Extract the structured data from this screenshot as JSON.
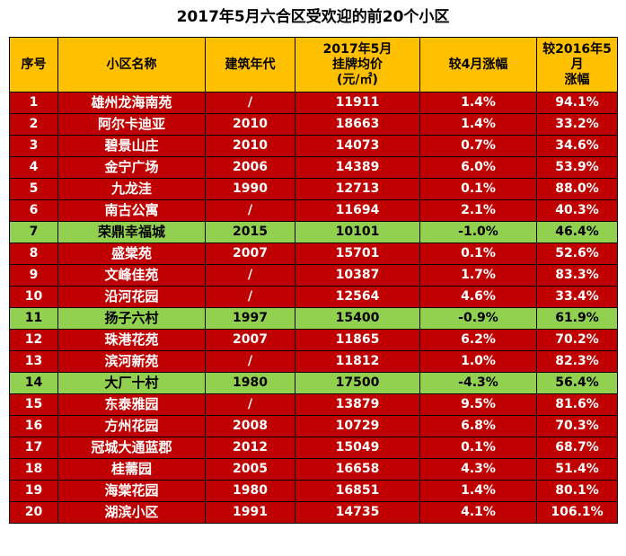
{
  "title": "2017年5月六合区受欢迎的前20个小区",
  "colors": {
    "header_bg": "#ffc000",
    "row_bg": "#c00000",
    "highlight_bg": "#92d050"
  },
  "chart_data": {
    "type": "table",
    "title": "2017年5月六合区受欢迎的前20个小区",
    "headers": [
      "序号",
      "小区名称",
      "建筑年代",
      "2017年5月挂牌均价(元/㎡)",
      "较4月涨幅",
      "较2016年5月涨幅"
    ],
    "rows": [
      {
        "no": "1",
        "name": "雄州龙海南苑",
        "year": "/",
        "price": "11911",
        "mom": "1.4%",
        "yoy": "94.1%",
        "highlight": false
      },
      {
        "no": "2",
        "name": "阿尔卡迪亚",
        "year": "2010",
        "price": "18663",
        "mom": "1.4%",
        "yoy": "33.2%",
        "highlight": false
      },
      {
        "no": "3",
        "name": "碧景山庄",
        "year": "2010",
        "price": "14073",
        "mom": "0.7%",
        "yoy": "34.6%",
        "highlight": false
      },
      {
        "no": "4",
        "name": "金宁广场",
        "year": "2006",
        "price": "14389",
        "mom": "6.0%",
        "yoy": "53.9%",
        "highlight": false
      },
      {
        "no": "5",
        "name": "九龙洼",
        "year": "1990",
        "price": "12713",
        "mom": "0.1%",
        "yoy": "88.0%",
        "highlight": false
      },
      {
        "no": "6",
        "name": "南古公寓",
        "year": "/",
        "price": "11694",
        "mom": "2.1%",
        "yoy": "40.3%",
        "highlight": false
      },
      {
        "no": "7",
        "name": "荣鼎幸福城",
        "year": "2015",
        "price": "10101",
        "mom": "-1.0%",
        "yoy": "46.4%",
        "highlight": true
      },
      {
        "no": "8",
        "name": "盛棠苑",
        "year": "2007",
        "price": "15701",
        "mom": "0.1%",
        "yoy": "52.6%",
        "highlight": false
      },
      {
        "no": "9",
        "name": "文峰佳苑",
        "year": "/",
        "price": "10387",
        "mom": "1.7%",
        "yoy": "83.3%",
        "highlight": false
      },
      {
        "no": "10",
        "name": "沿河花园",
        "year": "/",
        "price": "12564",
        "mom": "4.6%",
        "yoy": "33.4%",
        "highlight": false
      },
      {
        "no": "11",
        "name": "扬子六村",
        "year": "1997",
        "price": "15400",
        "mom": "-0.9%",
        "yoy": "61.9%",
        "highlight": true
      },
      {
        "no": "12",
        "name": "珠港花苑",
        "year": "2007",
        "price": "11865",
        "mom": "6.2%",
        "yoy": "70.2%",
        "highlight": false
      },
      {
        "no": "13",
        "name": "滨河新苑",
        "year": "/",
        "price": "11812",
        "mom": "1.0%",
        "yoy": "82.3%",
        "highlight": false
      },
      {
        "no": "14",
        "name": "大厂十村",
        "year": "1980",
        "price": "17500",
        "mom": "-4.3%",
        "yoy": "56.4%",
        "highlight": true
      },
      {
        "no": "15",
        "name": "东泰雅园",
        "year": "/",
        "price": "13879",
        "mom": "9.5%",
        "yoy": "81.6%",
        "highlight": false
      },
      {
        "no": "16",
        "name": "方州花园",
        "year": "2008",
        "price": "10729",
        "mom": "6.8%",
        "yoy": "70.3%",
        "highlight": false
      },
      {
        "no": "17",
        "name": "冠城大通蓝郡",
        "year": "2012",
        "price": "15049",
        "mom": "0.1%",
        "yoy": "68.7%",
        "highlight": false
      },
      {
        "no": "18",
        "name": "桂薷园",
        "year": "2005",
        "price": "16658",
        "mom": "4.3%",
        "yoy": "51.4%",
        "highlight": false
      },
      {
        "no": "19",
        "name": "海棠花园",
        "year": "1980",
        "price": "16851",
        "mom": "1.4%",
        "yoy": "80.1%",
        "highlight": false
      },
      {
        "no": "20",
        "name": "湖滨小区",
        "year": "1991",
        "price": "14735",
        "mom": "4.1%",
        "yoy": "106.1%",
        "highlight": false
      }
    ]
  }
}
